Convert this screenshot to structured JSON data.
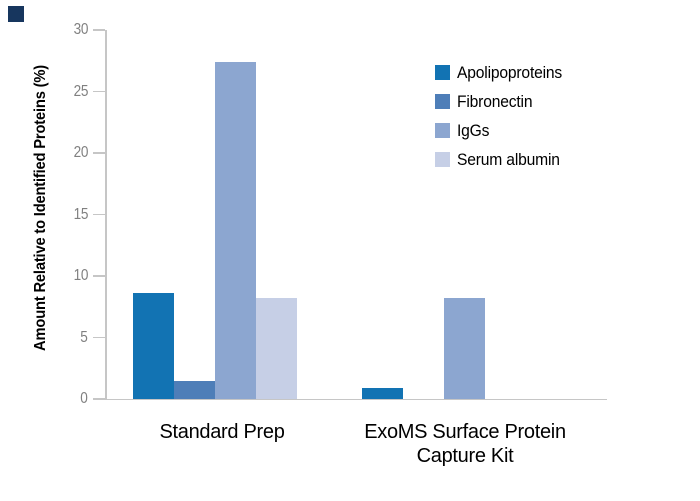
{
  "chart_data": {
    "type": "bar",
    "title": "",
    "ylabel": "Amount Relative to Identified Proteins (%)",
    "xlabel": "",
    "ylim": [
      0,
      30
    ],
    "yticks": [
      0,
      5,
      10,
      15,
      20,
      25,
      30
    ],
    "grid": false,
    "legend_position": "top-right",
    "categories": [
      [
        "Standard Prep"
      ],
      [
        "ExoMS Surface Protein",
        "Capture Kit"
      ]
    ],
    "series": [
      {
        "name": "Apolipoproteins",
        "color": "#1273b3",
        "values": [
          8.6,
          0.9
        ]
      },
      {
        "name": "Fibronectin",
        "color": "#4e7eb8",
        "values": [
          1.5,
          0
        ]
      },
      {
        "name": "IgGs",
        "color": "#8ca6d0",
        "values": [
          27.4,
          8.2
        ]
      },
      {
        "name": "Serum albumin",
        "color": "#c6cfe6",
        "values": [
          8.2,
          0
        ]
      }
    ],
    "colors": {
      "axis_line": "#c6c6c6",
      "tick_label": "#808080",
      "text": "#000000",
      "corner_mark": "#17365e",
      "background": "#ffffff"
    }
  }
}
